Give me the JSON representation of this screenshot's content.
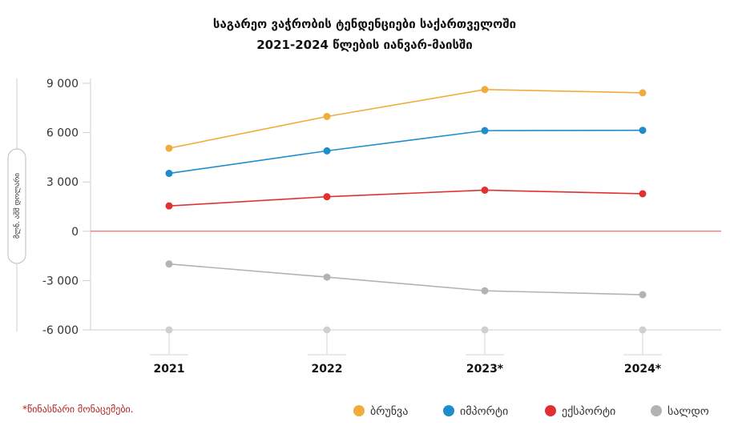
{
  "chart_data": {
    "type": "line",
    "title_lines": [
      "საგარეო ვაჭრობის ტენდენციები საქართველოში",
      "2021-2024 წლების იანვარ-მაისში"
    ],
    "ylabel": "მლნ. აშშ დოლარი",
    "categories": [
      "2021",
      "2022",
      "2023*",
      "2024*"
    ],
    "yticks": [
      9000,
      6000,
      3000,
      0,
      -3000,
      -6000
    ],
    "ytick_labels": [
      "9 000",
      "6 000",
      "3 000",
      "0",
      "-3 000",
      "-6 000"
    ],
    "ylim": [
      -6000,
      9000
    ],
    "grid": false,
    "legend_position": "bottom-right",
    "note": "*წინასწარი მონაცემები.",
    "zero_line_color": "#d9534f",
    "series": [
      {
        "name": "ბრუნვა",
        "color": "#f0ad3c",
        "values": [
          5050,
          6980,
          8620,
          8420
        ]
      },
      {
        "name": "იმპორტი",
        "color": "#1f8ccc",
        "values": [
          3520,
          4890,
          6120,
          6140
        ]
      },
      {
        "name": "ექსპორტი",
        "color": "#e03131",
        "values": [
          1540,
          2100,
          2500,
          2280
        ]
      },
      {
        "name": "სალდო",
        "color": "#b3b3b3",
        "values": [
          -1990,
          -2790,
          -3620,
          -3860
        ]
      }
    ]
  }
}
